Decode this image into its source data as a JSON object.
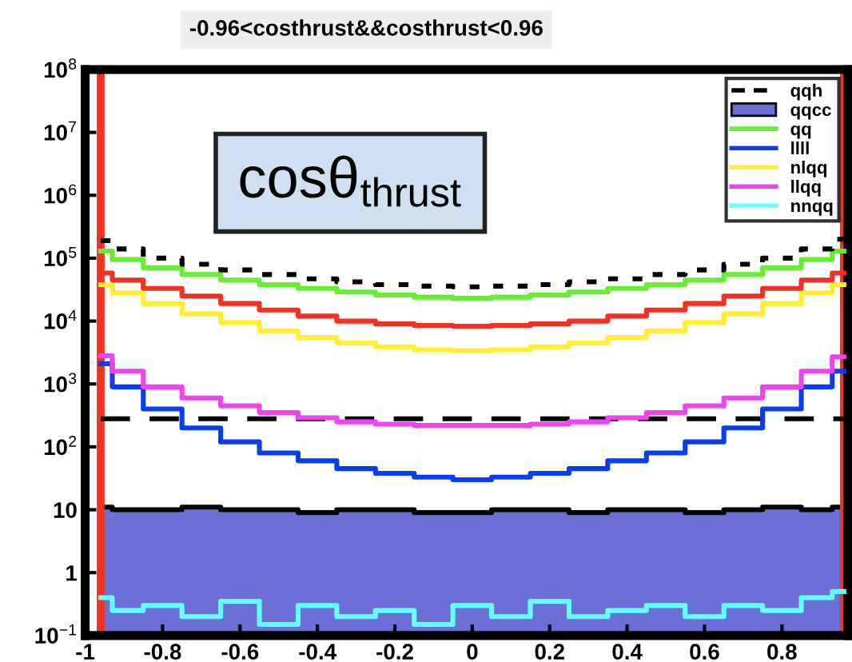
{
  "chart_data": {
    "type": "step",
    "title": "-0.96<costhrust&&costhrust<0.96",
    "annotations": [
      "cosθ$_{thrust}$"
    ],
    "x": [
      -0.96,
      -0.9,
      -0.8,
      -0.7,
      -0.6,
      -0.5,
      -0.4,
      -0.3,
      -0.2,
      -0.1,
      0,
      0.1,
      0.2,
      0.3,
      0.4,
      0.5,
      0.6,
      0.7,
      0.8,
      0.9,
      0.96
    ],
    "series": [
      {
        "name": "qqh",
        "color": "#000000",
        "line_style": "dashed",
        "values": [
          280,
          280,
          280,
          280,
          280,
          280,
          280,
          280,
          280,
          280,
          280,
          280,
          280,
          280,
          280,
          280,
          280,
          280,
          280,
          280,
          280
        ]
      },
      {
        "name": "qqcc",
        "type": "area",
        "color": "#6b6fd6",
        "values": [
          11,
          10,
          10,
          11,
          10,
          10,
          9,
          10,
          10,
          9,
          9,
          10,
          10,
          9,
          10,
          10,
          9,
          10,
          11,
          10,
          11
        ]
      },
      {
        "name": "qq",
        "color": "#66ee33",
        "values": [
          130000,
          95000,
          70000,
          55000,
          45000,
          38000,
          33000,
          29000,
          26000,
          24000,
          23000,
          24000,
          26000,
          29000,
          33000,
          38000,
          45000,
          55000,
          70000,
          95000,
          130000
        ]
      },
      {
        "name": "llll",
        "color": "#0a3cf0",
        "values": [
          2100,
          900,
          400,
          200,
          120,
          80,
          60,
          45,
          38,
          33,
          30,
          33,
          38,
          45,
          60,
          80,
          120,
          200,
          400,
          900,
          1600
        ]
      },
      {
        "name": "nlqq",
        "color": "#ffee33",
        "values": [
          38000,
          28000,
          19000,
          13000,
          9500,
          7000,
          5500,
          4500,
          3900,
          3500,
          3400,
          3500,
          3900,
          4500,
          5500,
          7000,
          9500,
          13000,
          19000,
          28000,
          38000
        ]
      },
      {
        "name": "llqq",
        "color": "#ee44ee",
        "values": [
          2800,
          1600,
          900,
          600,
          450,
          350,
          290,
          250,
          230,
          220,
          220,
          220,
          230,
          250,
          290,
          350,
          450,
          600,
          900,
          1600,
          2700
        ]
      },
      {
        "name": "nnqq",
        "color": "#66ffff",
        "values": [
          0.4,
          0.25,
          0.3,
          0.2,
          0.35,
          0.15,
          0.3,
          0.2,
          0.25,
          0.15,
          0.3,
          0.2,
          0.35,
          0.2,
          0.25,
          0.3,
          0.2,
          0.3,
          0.25,
          0.4,
          0.5
        ]
      },
      {
        "color": "#ee3322",
        "values": [
          58000,
          45000,
          33000,
          25000,
          19000,
          15000,
          12000,
          10000,
          9000,
          8500,
          8300,
          8500,
          9000,
          10000,
          12000,
          15000,
          19000,
          25000,
          33000,
          45000,
          58000
        ]
      },
      {
        "color": "#000000",
        "line_style": "dotted",
        "values": [
          190000,
          140000,
          100000,
          80000,
          65000,
          55000,
          47000,
          42000,
          38000,
          36000,
          35000,
          36000,
          38000,
          42000,
          47000,
          55000,
          65000,
          80000,
          100000,
          140000,
          200000
        ]
      }
    ],
    "ref_lines": [
      {
        "axis": "x",
        "value": -0.96,
        "color": "#ee3322"
      },
      {
        "axis": "x",
        "value": 0.96,
        "color": "#ee3322"
      }
    ],
    "log": "y",
    "xlim": [
      -1,
      0.97
    ],
    "ylim": [
      0.1,
      100000000
    ],
    "xticks": [
      -1,
      -0.8,
      -0.6,
      -0.4,
      -0.2,
      0,
      0.2,
      0.4,
      0.6,
      0.8
    ],
    "yticks": [
      {
        "value": 0.1,
        "label": "10$^{−1}$"
      },
      1,
      10,
      {
        "value": 100,
        "label": "10$^{2}$"
      },
      {
        "value": 1000,
        "label": "10$^{3}$"
      },
      {
        "value": 10000,
        "label": "10$^{4}$"
      },
      {
        "value": 100000,
        "label": "10$^{5}$"
      },
      {
        "value": 1000000,
        "label": "10$^{6}$"
      },
      {
        "value": 10000000,
        "label": "10$^{7}$"
      },
      {
        "value": 100000000,
        "label": "10$^{8}$"
      }
    ],
    "legend": "top right",
    "grid": false
  }
}
